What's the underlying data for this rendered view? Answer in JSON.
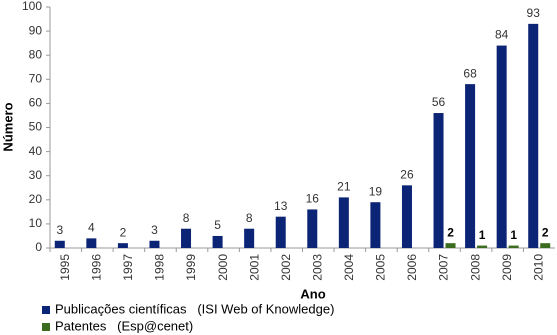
{
  "chart_data": {
    "type": "bar",
    "x_label": "Ano",
    "y_label": "Número",
    "categories": [
      "1995",
      "1996",
      "1997",
      "1998",
      "1999",
      "2000",
      "2001",
      "2002",
      "2003",
      "2004",
      "2005",
      "2006",
      "2007",
      "2008",
      "2009",
      "2010"
    ],
    "series": [
      {
        "name": "Publicações científicas   (ISI Web of Knowledge)",
        "color": "#0b2475",
        "values": [
          3,
          4,
          2,
          3,
          8,
          5,
          8,
          13,
          16,
          21,
          19,
          26,
          56,
          68,
          84,
          93
        ]
      },
      {
        "name": "Patentes   (Esp@cenet)",
        "color": "#3b6b1f",
        "values": [
          null,
          null,
          null,
          null,
          null,
          null,
          null,
          null,
          null,
          null,
          null,
          null,
          2,
          1,
          1,
          2
        ]
      }
    ],
    "ylim": [
      0,
      100
    ],
    "yticks": [
      0,
      10,
      20,
      30,
      40,
      50,
      60,
      70,
      80,
      90,
      100
    ],
    "legend": "bottom"
  }
}
